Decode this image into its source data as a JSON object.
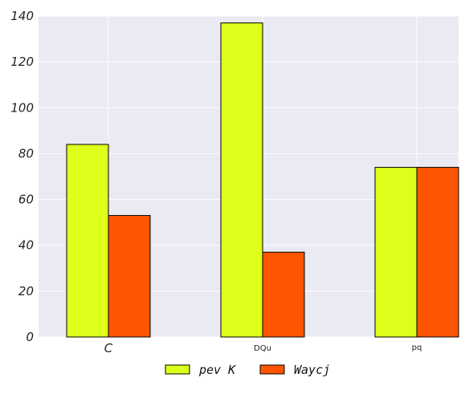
{
  "chart_data": {
    "type": "bar",
    "title": "",
    "xlabel": "",
    "ylabel": "",
    "categories": [
      "C",
      "DQu",
      "pq"
    ],
    "series": [
      {
        "name": "pev K",
        "color": "#ddff1a",
        "values": [
          84,
          137,
          74
        ]
      },
      {
        "name": "Waycj",
        "color": "#ff5500",
        "values": [
          53,
          37,
          74
        ]
      }
    ],
    "ylim": [
      0,
      140
    ],
    "yticks": [
      "0",
      "20",
      "40",
      "60",
      "80",
      "100",
      "120",
      "140"
    ],
    "grid": true,
    "background": "#eaeaf2",
    "legend_position": "bottom-center"
  }
}
